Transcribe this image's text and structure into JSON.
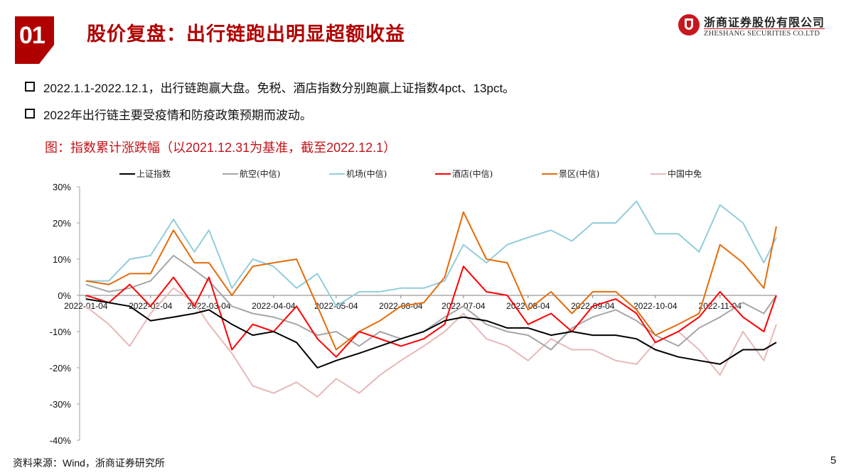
{
  "header": {
    "section_number": "01",
    "title": "股价复盘：出行链跑出明显超额收益",
    "logo": {
      "name_cn": "浙商证券股份有限公司",
      "name_en": "ZHESHANG SECURITIES CO.LTD",
      "brand_color": "#c8161d"
    }
  },
  "bullets": [
    "2022.1.1-2022.12.1，出行链跑赢大盘。免税、酒店指数分别跑赢上证指数4pct、13pct。",
    "2022年出行链主要受疫情和防疫政策预期而波动。"
  ],
  "figure_title": "图：指数累计涨跌幅（以2021.12.31为基准，截至2022.12.1）",
  "footer": {
    "source": "资料来源：Wind，浙商证券研究所",
    "page_number": "5"
  },
  "chart_data": {
    "type": "line",
    "title": "指数累计涨跌幅（以2021.12.31为基准，截至2022.12.1）",
    "xlabel": "",
    "ylabel": "",
    "ylim": [
      -40,
      30
    ],
    "yticks": [
      "30%",
      "20%",
      "10%",
      "0%",
      "-10%",
      "-20%",
      "-30%",
      "-40%"
    ],
    "ytick_values": [
      30,
      20,
      10,
      0,
      -10,
      -20,
      -30,
      -40
    ],
    "xtick_labels": [
      "2022-01-04",
      "2022-02-04",
      "2022-03-04",
      "2022-04-04",
      "2022-05-04",
      "2022-06-04",
      "2022-07-04",
      "2022-08-04",
      "2022-09-04",
      "2022-10-04",
      "2022-11-04"
    ],
    "grid": false,
    "legend_position": "top",
    "x": [
      "2022-01-04",
      "2022-01-15",
      "2022-01-25",
      "2022-02-04",
      "2022-02-15",
      "2022-02-25",
      "2022-03-04",
      "2022-03-15",
      "2022-03-25",
      "2022-04-04",
      "2022-04-15",
      "2022-04-25",
      "2022-05-04",
      "2022-05-15",
      "2022-05-25",
      "2022-06-04",
      "2022-06-15",
      "2022-06-25",
      "2022-07-04",
      "2022-07-15",
      "2022-07-25",
      "2022-08-04",
      "2022-08-15",
      "2022-08-25",
      "2022-09-04",
      "2022-09-15",
      "2022-09-25",
      "2022-10-04",
      "2022-10-15",
      "2022-10-25",
      "2022-11-04",
      "2022-11-15",
      "2022-11-25",
      "2022-12-01"
    ],
    "series": [
      {
        "name": "上证指数",
        "color": "#000000",
        "values": [
          -1,
          -2,
          -3,
          -7,
          -6,
          -5,
          -4,
          -8,
          -11,
          -10,
          -13,
          -20,
          -18,
          -16,
          -14,
          -12,
          -10,
          -7,
          -6,
          -7,
          -9,
          -9,
          -11,
          -10,
          -11,
          -11,
          -12,
          -15,
          -17,
          -18,
          -19,
          -15,
          -15,
          -13
        ]
      },
      {
        "name": "航空(中信)",
        "color": "#a6a6a6",
        "values": [
          3,
          1,
          2,
          4,
          11,
          7,
          4,
          -3,
          -5,
          -6,
          -8,
          -11,
          -10,
          -14,
          -10,
          -12,
          -10,
          -6,
          -3,
          -8,
          -10,
          -11,
          -15,
          -9,
          -6,
          -4,
          -7,
          -11,
          -14,
          -9,
          -6,
          -2,
          -5,
          0
        ]
      },
      {
        "name": "机场(中信)",
        "color": "#92cddc",
        "values": [
          4,
          4,
          10,
          11,
          21,
          12,
          18,
          2,
          10,
          8,
          2,
          6,
          -3,
          1,
          1,
          2,
          2,
          4,
          14,
          9,
          14,
          16,
          18,
          15,
          20,
          20,
          26,
          17,
          17,
          12,
          25,
          20,
          9,
          16
        ]
      },
      {
        "name": "酒店(中信)",
        "color": "#ff0000",
        "values": [
          0,
          -2,
          3,
          -3,
          5,
          -3,
          5,
          -15,
          -8,
          -10,
          -3,
          -12,
          -17,
          -10,
          -12,
          -14,
          -12,
          -8,
          8,
          1,
          0,
          -8,
          -5,
          -10,
          -3,
          -1,
          -5,
          -13,
          -10,
          -6,
          1,
          -6,
          -10,
          0
        ]
      },
      {
        "name": "景区(中信)",
        "color": "#e46c0a",
        "values": [
          4,
          3,
          6,
          6,
          18,
          9,
          9,
          0,
          8,
          9,
          10,
          -3,
          -15,
          -10,
          -7,
          -3,
          -2,
          5,
          23,
          10,
          9,
          -4,
          1,
          -5,
          1,
          1,
          -4,
          -11,
          -8,
          -5,
          14,
          9,
          2,
          19
        ]
      },
      {
        "name": "中国中免",
        "color": "#e6b9b8",
        "values": [
          -3,
          -8,
          -14,
          -5,
          2,
          -2,
          -8,
          -16,
          -25,
          -27,
          -24,
          -28,
          -23,
          -27,
          -22,
          -18,
          -14,
          -10,
          -5,
          -12,
          -14,
          -18,
          -12,
          -15,
          -15,
          -18,
          -19,
          -13,
          -10,
          -15,
          -22,
          -10,
          -18,
          -8
        ]
      }
    ]
  }
}
